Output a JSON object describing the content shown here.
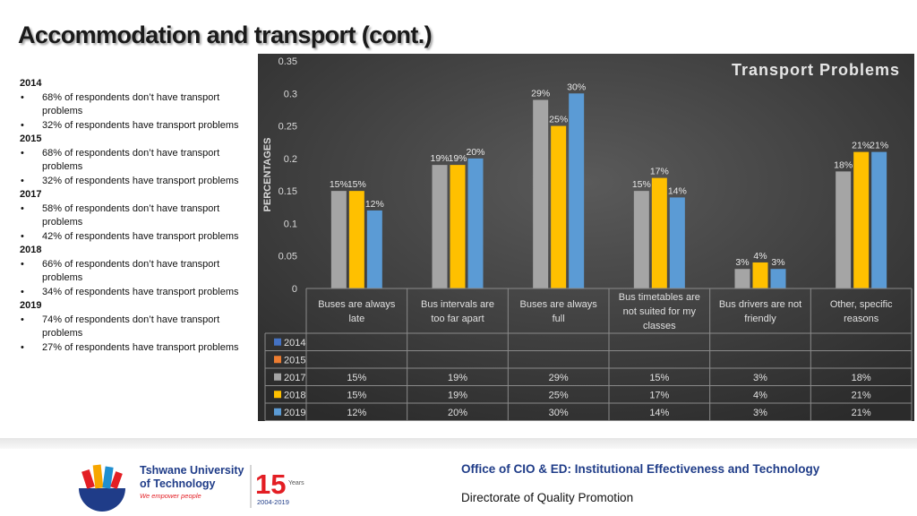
{
  "slide_title": "Accommodation and transport (cont.)",
  "summary": [
    {
      "year": "2014",
      "bullets": [
        "68% of respondents don’t have transport problems",
        "32% of respondents have transport problems"
      ]
    },
    {
      "year": "2015",
      "bullets": [
        "68% of respondents don’t have transport problems",
        "32% of respondents have transport problems"
      ]
    },
    {
      "year": "2017",
      "bullets": [
        "58% of respondents don’t have transport problems",
        "42% of respondents have transport problems"
      ]
    },
    {
      "year": "2018",
      "bullets": [
        "66% of respondents don’t have transport problems",
        "34% of respondents have transport problems"
      ]
    },
    {
      "year": "2019",
      "bullets": [
        "74% of respondents don’t have transport problems",
        "27% of respondents have transport problems"
      ]
    }
  ],
  "chart_data": {
    "type": "bar",
    "title": "Transport Problems",
    "ylabel": "PERCENTAGES",
    "xlabel": "",
    "ylim": [
      0,
      0.35
    ],
    "yticks": [
      "0",
      "0.05",
      "0.1",
      "0.15",
      "0.2",
      "0.25",
      "0.3",
      "0.35"
    ],
    "categories": [
      [
        "Buses are always",
        "late"
      ],
      [
        "Bus intervals are",
        "too far apart"
      ],
      [
        "Buses are always",
        "full"
      ],
      [
        "Bus timetables are",
        "not suited for my",
        "classes"
      ],
      [
        "Bus drivers are not",
        "friendly"
      ],
      [
        "Other, specific",
        "reasons"
      ]
    ],
    "series": [
      {
        "name": "2014",
        "color": "#4472c4",
        "values": [
          null,
          null,
          null,
          null,
          null,
          null
        ],
        "labels": [
          "",
          "",
          "",
          "",
          "",
          ""
        ]
      },
      {
        "name": "2015",
        "color": "#ed7d31",
        "values": [
          null,
          null,
          null,
          null,
          null,
          null
        ],
        "labels": [
          "",
          "",
          "",
          "",
          "",
          ""
        ]
      },
      {
        "name": "2017",
        "color": "#a5a5a5",
        "values": [
          0.15,
          0.19,
          0.29,
          0.15,
          0.03,
          0.18
        ],
        "labels": [
          "15%",
          "19%",
          "29%",
          "15%",
          "3%",
          "18%"
        ]
      },
      {
        "name": "2018",
        "color": "#ffc000",
        "values": [
          0.15,
          0.19,
          0.25,
          0.17,
          0.04,
          0.21
        ],
        "labels": [
          "15%",
          "19%",
          "25%",
          "17%",
          "4%",
          "21%"
        ]
      },
      {
        "name": "2019",
        "color": "#5b9bd5",
        "values": [
          0.12,
          0.2,
          0.3,
          0.14,
          0.03,
          0.21
        ],
        "labels": [
          "12%",
          "20%",
          "30%",
          "14%",
          "3%",
          "21%"
        ]
      }
    ],
    "data_table": true,
    "grid": false
  },
  "logo": {
    "name_line1": "Tshwane University",
    "name_line2": "of Technology",
    "tagline": "We empower people",
    "anniversary_number": "15",
    "anniversary_word": "Years",
    "anniversary_range": "2004-2019"
  },
  "footer": {
    "office": "Office of CIO & ED: Institutional  Effectiveness and Technology",
    "directorate": "Directorate of Quality Promotion"
  }
}
